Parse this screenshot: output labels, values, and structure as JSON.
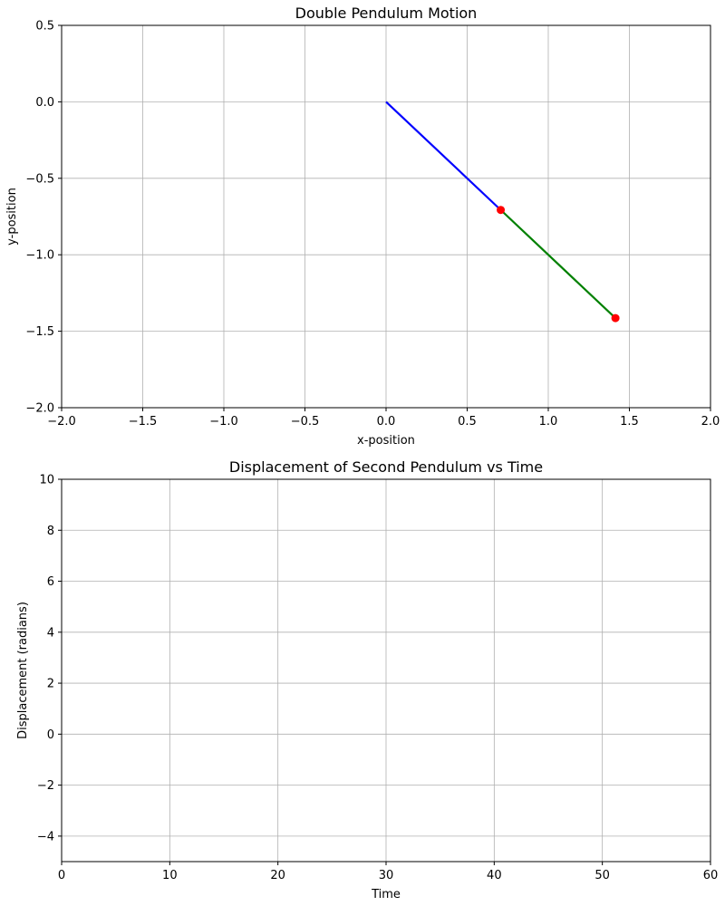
{
  "chart_data": [
    {
      "type": "line",
      "title": "Double Pendulum Motion",
      "xlabel": "x-position",
      "ylabel": "y-position",
      "xlim": [
        -2.0,
        2.0
      ],
      "ylim": [
        -2.0,
        0.5
      ],
      "xticks": [
        -2.0,
        -1.5,
        -1.0,
        -0.5,
        0.0,
        0.5,
        1.0,
        1.5,
        2.0
      ],
      "yticks": [
        -2.0,
        -1.5,
        -1.0,
        -0.5,
        0.0,
        0.5
      ],
      "xtick_labels": [
        "−2.0",
        "−1.5",
        "−1.0",
        "−0.5",
        "0.0",
        "0.5",
        "1.0",
        "1.5",
        "2.0"
      ],
      "ytick_labels": [
        "−2.0",
        "−1.5",
        "−1.0",
        "−0.5",
        "0.0",
        "0.5"
      ],
      "grid": true,
      "segments": [
        {
          "from": [
            0.0,
            0.0
          ],
          "to": [
            0.707,
            -0.707
          ],
          "color": "#0000ff"
        },
        {
          "from": [
            0.707,
            -0.707
          ],
          "to": [
            1.414,
            -1.414
          ],
          "color": "#008000"
        }
      ],
      "points": [
        {
          "x": 0.707,
          "y": -0.707,
          "color": "#ff0000"
        },
        {
          "x": 1.414,
          "y": -1.414,
          "color": "#ff0000"
        }
      ]
    },
    {
      "type": "line",
      "title": "Displacement of Second Pendulum vs Time",
      "xlabel": "Time",
      "ylabel": "Displacement (radians)",
      "xlim": [
        0,
        60
      ],
      "ylim": [
        -5,
        10
      ],
      "xticks": [
        0,
        10,
        20,
        30,
        40,
        50,
        60
      ],
      "yticks": [
        -4,
        -2,
        0,
        2,
        4,
        6,
        8,
        10
      ],
      "xtick_labels": [
        "0",
        "10",
        "20",
        "30",
        "40",
        "50",
        "60"
      ],
      "ytick_labels": [
        "−4",
        "−2",
        "0",
        "2",
        "4",
        "6",
        "8",
        "10"
      ],
      "grid": true,
      "series": []
    }
  ]
}
